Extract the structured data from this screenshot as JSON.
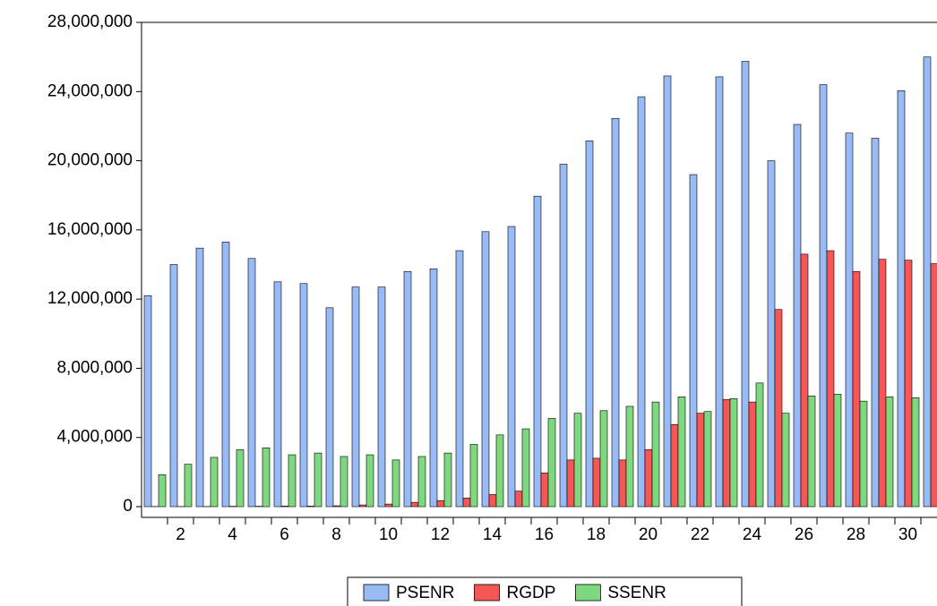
{
  "chart_data": {
    "type": "bar",
    "categories": [
      null,
      "2",
      null,
      "4",
      null,
      "6",
      null,
      "8",
      null,
      "10",
      null,
      "12",
      null,
      "14",
      null,
      "16",
      null,
      "18",
      null,
      "20",
      null,
      "22",
      null,
      "24",
      null,
      "26",
      null,
      "28",
      null,
      "30",
      null
    ],
    "series": [
      {
        "name": "PSENR",
        "color": "#99bbf5",
        "values": [
          12200000,
          14000000,
          14950000,
          15300000,
          14350000,
          13000000,
          12900000,
          11500000,
          12700000,
          12700000,
          13600000,
          13750000,
          14800000,
          15900000,
          16200000,
          17950000,
          19800000,
          21150000,
          22450000,
          23700000,
          24900000,
          19200000,
          24850000,
          25750000,
          20000000,
          22100000,
          24400000,
          21600000,
          21300000,
          24050000,
          26000000
        ]
      },
      {
        "name": "RGDP",
        "color": "#f55656",
        "values": [
          10000,
          10000,
          10000,
          20000,
          20000,
          30000,
          30000,
          50000,
          100000,
          150000,
          250000,
          350000,
          500000,
          700000,
          900000,
          1950000,
          2700000,
          2800000,
          2700000,
          3300000,
          4750000,
          5400000,
          6200000,
          6050000,
          11400000,
          14600000,
          14800000,
          13600000,
          14300000,
          14250000,
          14050000
        ]
      },
      {
        "name": "SSENR",
        "color": "#7ed87e",
        "values": [
          1850000,
          2450000,
          2850000,
          3300000,
          3400000,
          3000000,
          3100000,
          2900000,
          3000000,
          2700000,
          2900000,
          3100000,
          3600000,
          4150000,
          4500000,
          5100000,
          5400000,
          5550000,
          5800000,
          6050000,
          6350000,
          5500000,
          6250000,
          7150000,
          5400000,
          6400000,
          6500000,
          6100000,
          6350000,
          6300000,
          null
        ]
      }
    ],
    "ylim": [
      -620000,
      28000000
    ],
    "yticks": [
      0,
      {
        "value": 4000000,
        "label": "4,000,000"
      },
      {
        "value": 8000000,
        "label": "8,000,000"
      },
      {
        "value": 12000000,
        "label": "12,000,000"
      },
      {
        "value": 16000000,
        "label": "16,000,000"
      },
      {
        "value": 20000000,
        "label": "20,000,000"
      },
      {
        "value": 24000000,
        "label": "24,000,000"
      },
      {
        "value": 28000000,
        "label": "28,000,000"
      }
    ],
    "legend": "bottom"
  }
}
